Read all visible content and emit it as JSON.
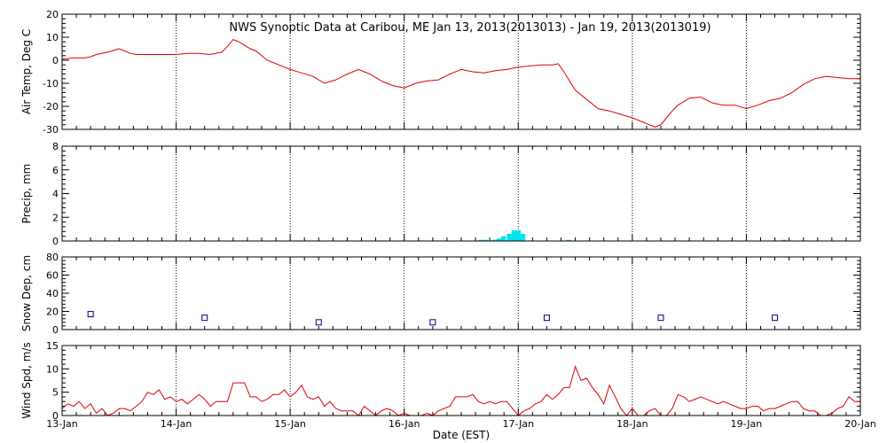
{
  "chart_data": {
    "type": "multi-panel time series",
    "title": "NWS Synoptic Data at Caribou, ME   Jan 13, 2013(2013013) - Jan 19, 2013(2013019)",
    "xlabel": "Date (EST)",
    "x_unit": "days since 13-Jan 00:00 EST",
    "xlim": [
      0,
      7
    ],
    "x_ticks": [
      0,
      1,
      2,
      3,
      4,
      5,
      6,
      7
    ],
    "x_tick_labels": [
      "13-Jan",
      "14-Jan",
      "15-Jan",
      "16-Jan",
      "17-Jan",
      "18-Jan",
      "19-Jan",
      "20-Jan"
    ],
    "colors": {
      "line": "#dd0000",
      "bar": "#00e5ee",
      "marker": "#000080",
      "grid": "#000000"
    },
    "panels": [
      {
        "id": "temp",
        "type": "line",
        "ylabel": "Air Temp, Deg C",
        "ylim": [
          -30,
          20
        ],
        "y_ticks": [
          -30,
          -20,
          -10,
          0,
          10,
          20
        ],
        "series": [
          {
            "x": [
              0,
              0.1,
              0.2,
              0.25,
              0.3,
              0.4,
              0.5,
              0.55,
              0.6,
              0.65,
              0.7,
              0.8,
              0.9,
              1.0,
              1.1,
              1.2,
              1.3,
              1.4,
              1.45,
              1.5,
              1.55,
              1.6,
              1.65,
              1.7,
              1.75,
              1.8,
              1.9,
              2.0,
              2.1,
              2.2,
              2.3,
              2.4,
              2.5,
              2.6,
              2.7,
              2.8,
              2.9,
              3.0,
              3.1,
              3.2,
              3.3,
              3.4,
              3.5,
              3.6,
              3.7,
              3.8,
              3.9,
              4.0,
              4.1,
              4.2,
              4.3,
              4.35,
              4.4,
              4.45,
              4.5,
              4.6,
              4.7,
              4.8,
              4.9,
              5.0,
              5.1,
              5.15,
              5.2,
              5.25,
              5.3,
              5.35,
              5.4,
              5.5,
              5.6,
              5.7,
              5.8,
              5.9,
              6.0,
              6.1,
              6.2,
              6.3,
              6.4,
              6.5,
              6.6,
              6.7,
              6.8,
              6.9,
              7.0
            ],
            "y": [
              0.5,
              1,
              1,
              1.5,
              2.5,
              3.5,
              5,
              4,
              3,
              2.5,
              2.5,
              2.5,
              2.5,
              2.5,
              3,
              3,
              2.5,
              3.5,
              6,
              9,
              8,
              6.5,
              5,
              4,
              2,
              0,
              -2,
              -4,
              -5.5,
              -7,
              -10,
              -8.5,
              -6,
              -4,
              -6,
              -9,
              -11,
              -12,
              -10,
              -9,
              -8.5,
              -6,
              -4,
              -5,
              -5.5,
              -4.5,
              -4,
              -3,
              -2.5,
              -2,
              -2,
              -1.5,
              -5,
              -9,
              -13,
              -17,
              -21,
              -22,
              -23.5,
              -25,
              -27,
              -28,
              -29,
              -28,
              -25,
              -22,
              -19.5,
              -16.5,
              -16,
              -18.5,
              -19.5,
              -19.5,
              -21,
              -19.5,
              -17.5,
              -16.5,
              -14,
              -10.5,
              -8,
              -7,
              -7.5,
              -8,
              -8
            ]
          }
        ]
      },
      {
        "id": "precip",
        "type": "bar",
        "ylabel": "Precip, mm",
        "ylim": [
          0,
          8
        ],
        "y_ticks": [
          0,
          2,
          4,
          6,
          8
        ],
        "bar_width": 0.0417,
        "series": [
          {
            "x": [
              3.65,
              3.69,
              3.77,
              3.81,
              3.85,
              3.9,
              3.94,
              3.98,
              4.02,
              4.42,
              6.31
            ],
            "y": [
              0.1,
              0.1,
              0.1,
              0.2,
              0.4,
              0.6,
              0.9,
              0.9,
              0.6,
              0.1,
              0.1
            ]
          }
        ]
      },
      {
        "id": "snow",
        "type": "scatter",
        "ylabel": "Snow Dep, cm",
        "ylim": [
          0,
          80
        ],
        "y_ticks": [
          0,
          20,
          40,
          60,
          80
        ],
        "series": [
          {
            "x": [
              0.25,
              1.25,
              2.25,
              3.25,
              4.25,
              5.25,
              6.25
            ],
            "y": [
              17,
              13,
              8,
              8,
              13,
              13,
              13
            ]
          }
        ]
      },
      {
        "id": "wind",
        "type": "line",
        "ylabel": "Wind Spd, m/s",
        "ylim": [
          0,
          15
        ],
        "y_ticks": [
          0,
          5,
          10,
          15
        ],
        "series": [
          {
            "x": [
              0,
              0.05,
              0.1,
              0.15,
              0.2,
              0.25,
              0.3,
              0.35,
              0.4,
              0.45,
              0.5,
              0.55,
              0.6,
              0.65,
              0.7,
              0.75,
              0.8,
              0.85,
              0.9,
              0.95,
              1.0,
              1.05,
              1.1,
              1.15,
              1.2,
              1.25,
              1.3,
              1.35,
              1.4,
              1.45,
              1.5,
              1.55,
              1.6,
              1.65,
              1.7,
              1.75,
              1.8,
              1.85,
              1.9,
              1.95,
              2.0,
              2.05,
              2.1,
              2.15,
              2.2,
              2.25,
              2.3,
              2.35,
              2.4,
              2.45,
              2.5,
              2.55,
              2.6,
              2.65,
              2.7,
              2.75,
              2.8,
              2.85,
              2.9,
              2.95,
              3.0,
              3.05,
              3.1,
              3.15,
              3.2,
              3.25,
              3.3,
              3.35,
              3.4,
              3.45,
              3.5,
              3.55,
              3.6,
              3.65,
              3.7,
              3.75,
              3.8,
              3.85,
              3.9,
              3.95,
              4.0,
              4.05,
              4.1,
              4.15,
              4.2,
              4.25,
              4.3,
              4.35,
              4.4,
              4.45,
              4.5,
              4.55,
              4.6,
              4.65,
              4.7,
              4.75,
              4.8,
              4.85,
              4.9,
              4.95,
              5.0,
              5.05,
              5.1,
              5.15,
              5.2,
              5.25,
              5.3,
              5.35,
              5.4,
              5.45,
              5.5,
              5.55,
              5.6,
              5.65,
              5.7,
              5.75,
              5.8,
              5.85,
              5.9,
              5.95,
              6.0,
              6.05,
              6.1,
              6.15,
              6.2,
              6.25,
              6.3,
              6.35,
              6.4,
              6.45,
              6.5,
              6.55,
              6.6,
              6.65,
              6.7,
              6.75,
              6.8,
              6.85,
              6.9,
              6.95,
              7.0
            ],
            "y": [
              1.5,
              2.5,
              2,
              3,
              1.5,
              2.5,
              0.5,
              1.5,
              0,
              0.5,
              1.5,
              1.5,
              1,
              2,
              3,
              5,
              4.5,
              5.5,
              3.5,
              4,
              3,
              3.5,
              2.5,
              3.5,
              4.5,
              3.5,
              2,
              3,
              3,
              3,
              7,
              7,
              7,
              4,
              4,
              3,
              3.5,
              4.5,
              4.5,
              5.5,
              4,
              5,
              6.5,
              4,
              3.5,
              4,
              2,
              3,
              1.5,
              1,
              1,
              1,
              0,
              2,
              1,
              0,
              1,
              1.5,
              1,
              0,
              0.5,
              0,
              0,
              0,
              0.5,
              0,
              1,
              1.5,
              2,
              4,
              4,
              4,
              4.5,
              3,
              2.5,
              3,
              2.5,
              3,
              3,
              1.5,
              0,
              1,
              1.5,
              2.5,
              3,
              4.5,
              3.5,
              4.5,
              6,
              6,
              10.5,
              7.5,
              8,
              6,
              4.5,
              2.5,
              6.5,
              4,
              1.5,
              0,
              1.5,
              0,
              0,
              1,
              1.5,
              0,
              0,
              1.5,
              4.5,
              4,
              3,
              3.5,
              4,
              3.5,
              3,
              2.5,
              3,
              2.5,
              2,
              1.5,
              1.5,
              2,
              2,
              1,
              1.5,
              1.5,
              2,
              2.5,
              3,
              3,
              1.5,
              1,
              1,
              0,
              0,
              0.5,
              1.5,
              2,
              4,
              3,
              3
            ]
          }
        ]
      }
    ]
  }
}
